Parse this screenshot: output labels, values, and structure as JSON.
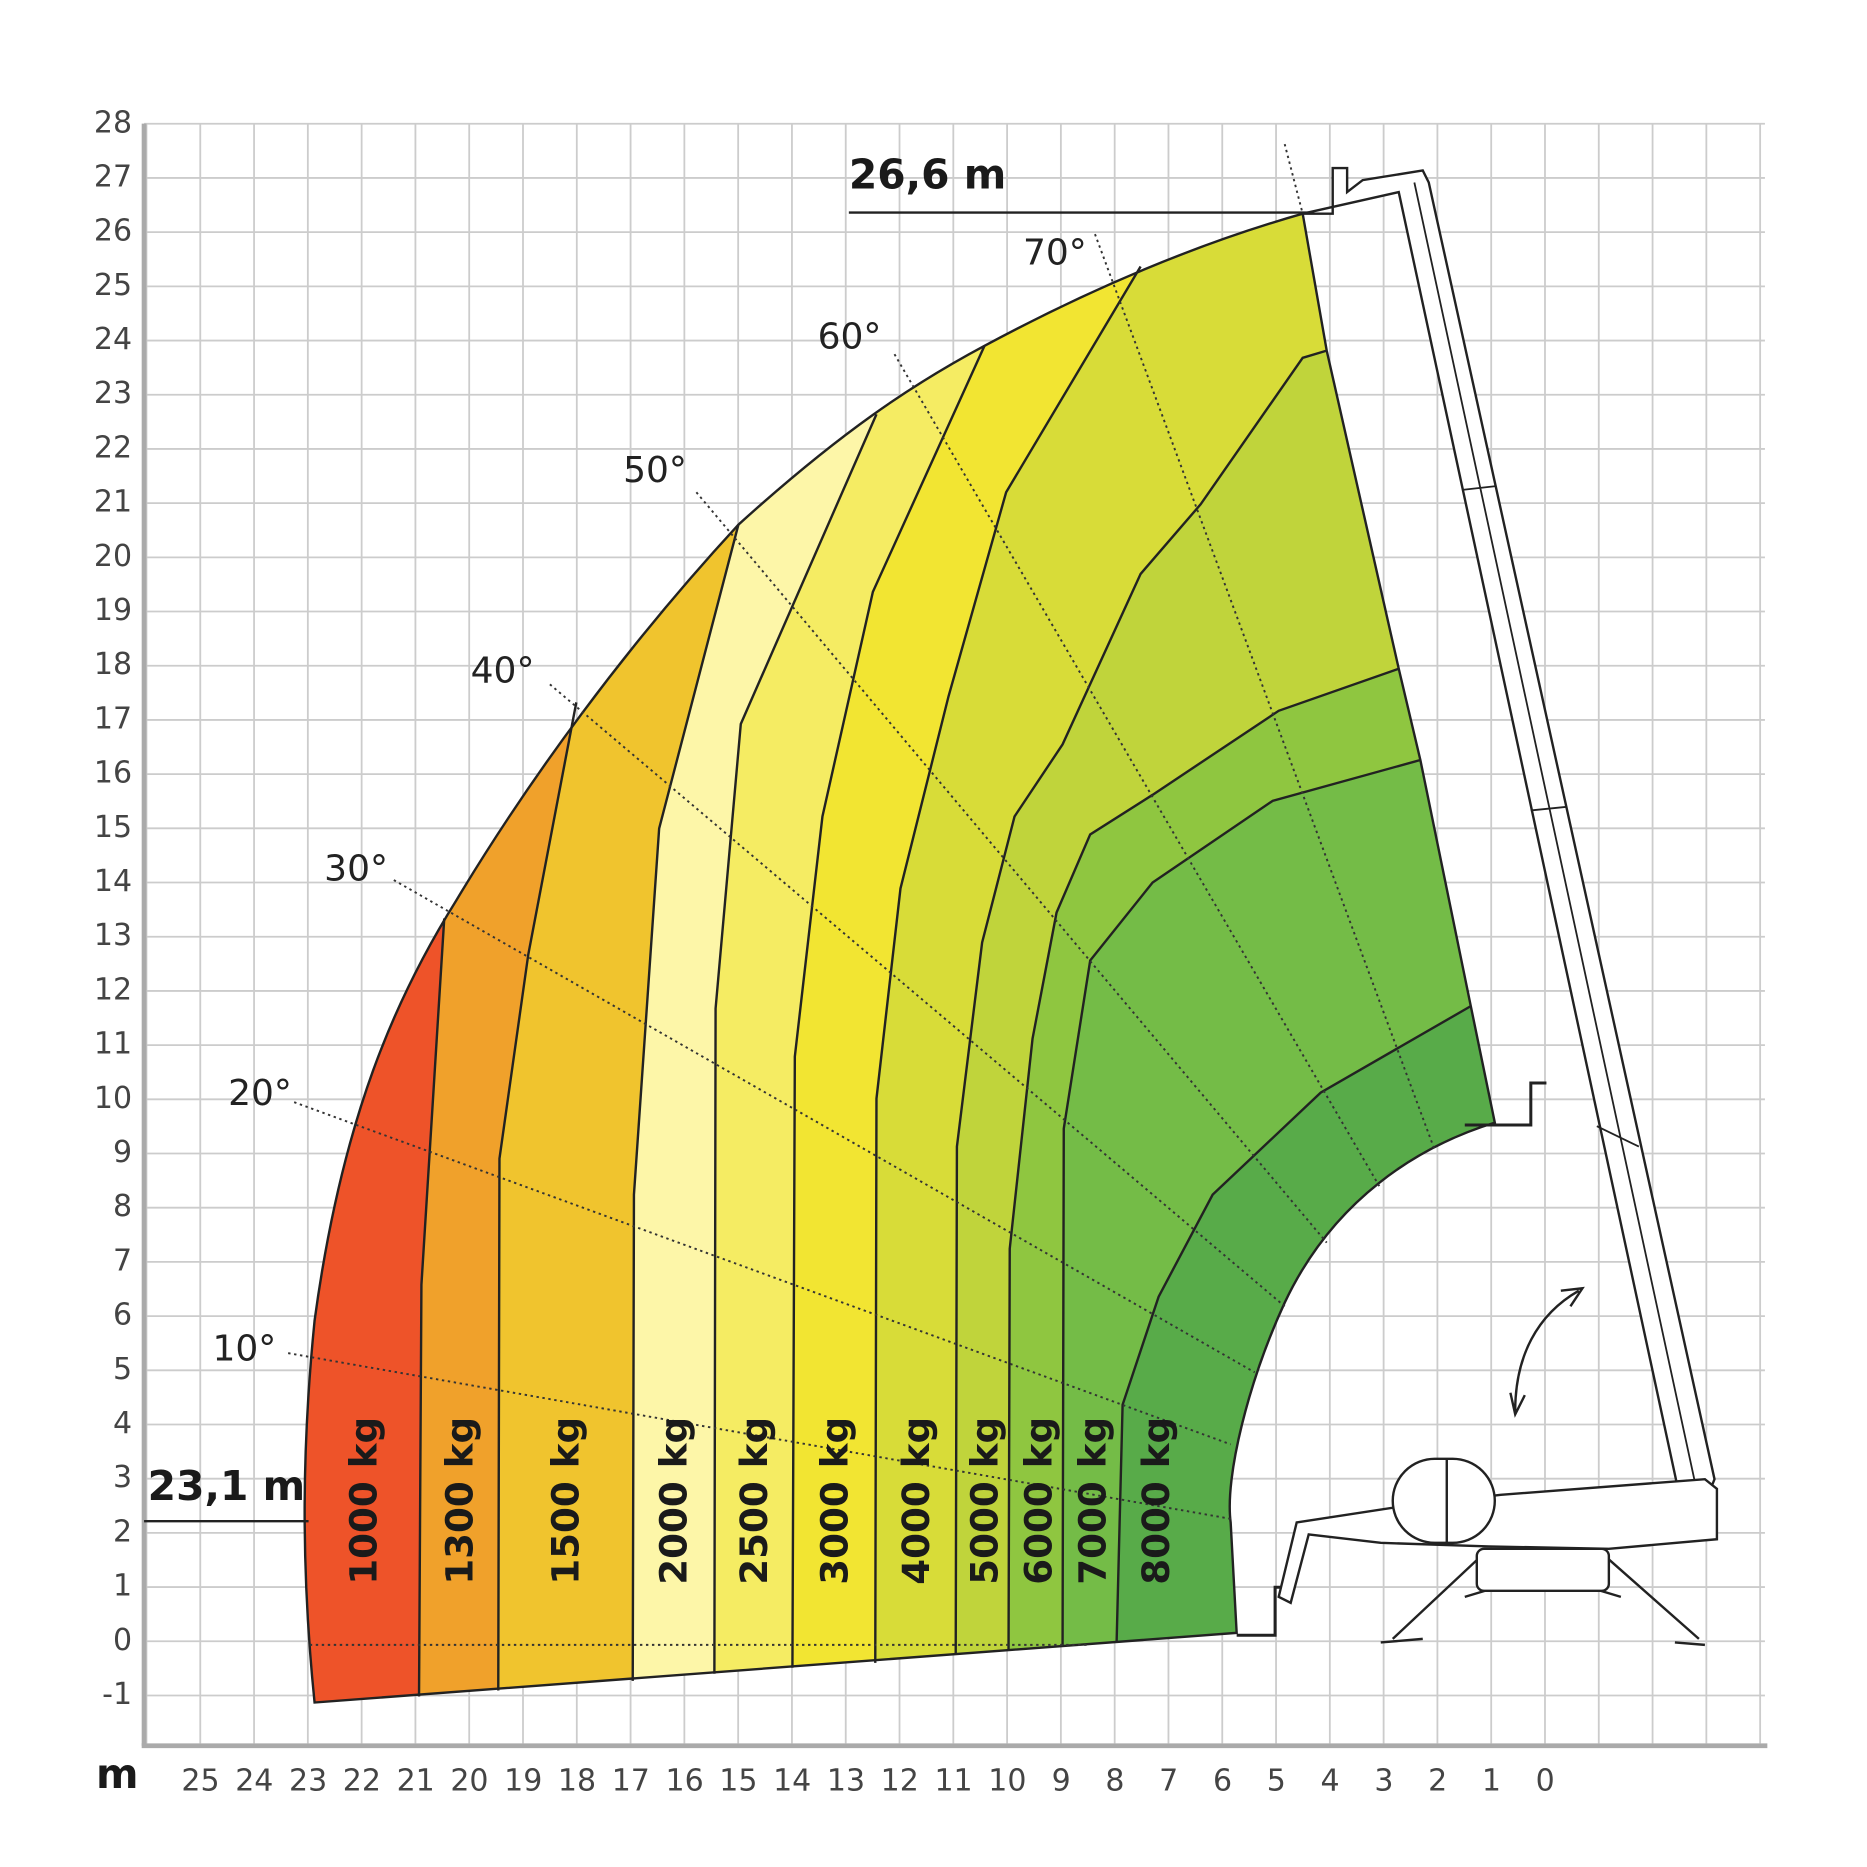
{
  "axes": {
    "unit": "m",
    "yticks": [
      -1,
      0,
      1,
      2,
      3,
      4,
      5,
      6,
      7,
      8,
      9,
      10,
      11,
      12,
      13,
      14,
      15,
      16,
      17,
      18,
      19,
      20,
      21,
      22,
      23,
      24,
      25,
      26,
      27,
      28
    ],
    "xticks": [
      25,
      24,
      23,
      22,
      21,
      20,
      19,
      18,
      17,
      16,
      15,
      14,
      13,
      12,
      11,
      10,
      9,
      8,
      7,
      6,
      5,
      4,
      3,
      2,
      1,
      0
    ]
  },
  "annotations": {
    "max_height": "26,6 m",
    "max_reach": "23,1 m"
  },
  "angles": [
    "10°",
    "20°",
    "30°",
    "40°",
    "50°",
    "60°",
    "70°"
  ],
  "loads": [
    "1000 kg",
    "1300 kg",
    "1500 kg",
    "2000 kg",
    "2500 kg",
    "3000 kg",
    "4000 kg",
    "5000 kg",
    "6000 kg",
    "7000 kg",
    "8000 kg"
  ]
}
